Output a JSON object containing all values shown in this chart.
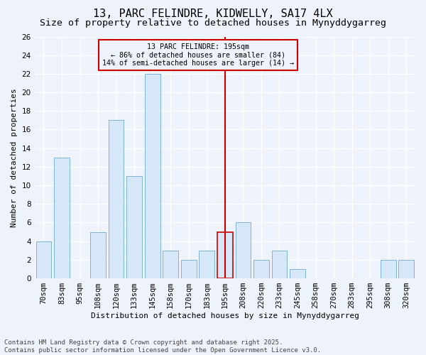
{
  "title": "13, PARC FELINDRE, KIDWELLY, SA17 4LX",
  "subtitle": "Size of property relative to detached houses in Mynyddygarreg",
  "xlabel": "Distribution of detached houses by size in Mynyddygarreg",
  "ylabel": "Number of detached properties",
  "categories": [
    "70sqm",
    "83sqm",
    "95sqm",
    "108sqm",
    "120sqm",
    "133sqm",
    "145sqm",
    "158sqm",
    "170sqm",
    "183sqm",
    "195sqm",
    "208sqm",
    "220sqm",
    "233sqm",
    "245sqm",
    "258sqm",
    "270sqm",
    "283sqm",
    "295sqm",
    "308sqm",
    "320sqm"
  ],
  "values": [
    4,
    13,
    0,
    5,
    17,
    11,
    22,
    3,
    2,
    3,
    5,
    6,
    2,
    3,
    1,
    0,
    0,
    0,
    0,
    2,
    2
  ],
  "bar_color": "#d6e8f7",
  "bar_edge_color": "#7db4d8",
  "highlight_index": 10,
  "highlight_color": "#cc0000",
  "vline_x": 10,
  "ylim": [
    0,
    26
  ],
  "yticks": [
    0,
    2,
    4,
    6,
    8,
    10,
    12,
    14,
    16,
    18,
    20,
    22,
    24,
    26
  ],
  "annotation_text": "13 PARC FELINDRE: 195sqm\n← 86% of detached houses are smaller (84)\n14% of semi-detached houses are larger (14) →",
  "annotation_box_color": "#cc0000",
  "footer": "Contains HM Land Registry data © Crown copyright and database right 2025.\nContains public sector information licensed under the Open Government Licence v3.0.",
  "bg_color": "#eef2fa",
  "grid_color": "#ffffff",
  "title_fontsize": 11,
  "subtitle_fontsize": 9.5,
  "axis_label_fontsize": 8,
  "tick_fontsize": 7.5,
  "footer_fontsize": 6.5
}
